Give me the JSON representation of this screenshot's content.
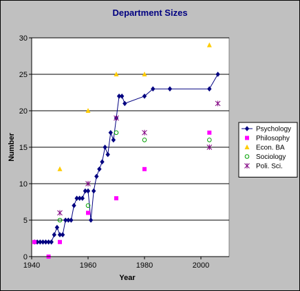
{
  "chart_data": {
    "type": "scatter",
    "title": "Department Sizes",
    "xlabel": "Year",
    "ylabel": "Number",
    "xlim": [
      1940,
      2010
    ],
    "ylim": [
      0,
      30
    ],
    "x_ticks": [
      1940,
      1960,
      1980,
      2000
    ],
    "y_ticks": [
      0,
      5,
      10,
      15,
      20,
      25,
      30
    ],
    "grid": "horizontal",
    "legend_position": "right",
    "series": [
      {
        "name": "Psychology",
        "style": "line-markers",
        "marker": "diamond",
        "color": "#000080",
        "points": [
          [
            1941,
            2
          ],
          [
            1942,
            2
          ],
          [
            1943,
            2
          ],
          [
            1944,
            2
          ],
          [
            1945,
            2
          ],
          [
            1946,
            2
          ],
          [
            1947,
            2
          ],
          [
            1948,
            3
          ],
          [
            1949,
            4
          ],
          [
            1950,
            3
          ],
          [
            1951,
            3
          ],
          [
            1952,
            5
          ],
          [
            1953,
            5
          ],
          [
            1954,
            5
          ],
          [
            1955,
            7
          ],
          [
            1956,
            8
          ],
          [
            1957,
            8
          ],
          [
            1958,
            8
          ],
          [
            1959,
            9
          ],
          [
            1960,
            9
          ],
          [
            1961,
            5
          ],
          [
            1962,
            9
          ],
          [
            1963,
            11
          ],
          [
            1964,
            12
          ],
          [
            1965,
            13
          ],
          [
            1966,
            15
          ],
          [
            1967,
            14
          ],
          [
            1968,
            17
          ],
          [
            1969,
            16
          ],
          [
            1970,
            19
          ],
          [
            1971,
            22
          ],
          [
            1972,
            22
          ],
          [
            1973,
            21
          ],
          [
            1980,
            22
          ],
          [
            1983,
            23
          ],
          [
            1989,
            23
          ],
          [
            2003,
            23
          ],
          [
            2006,
            25
          ]
        ]
      },
      {
        "name": "Philosophy",
        "style": "markers",
        "marker": "square",
        "color": "#ff00ff",
        "points": [
          [
            1941,
            2
          ],
          [
            1946,
            0
          ],
          [
            1950,
            2
          ],
          [
            1960,
            6
          ],
          [
            1970,
            8
          ],
          [
            1980,
            12
          ],
          [
            2003,
            17
          ]
        ]
      },
      {
        "name": "Econ. BA",
        "style": "markers",
        "marker": "triangle",
        "color": "#ffcc00",
        "points": [
          [
            1950,
            12
          ],
          [
            1960,
            20
          ],
          [
            1970,
            25
          ],
          [
            1980,
            25
          ],
          [
            2003,
            29
          ]
        ]
      },
      {
        "name": "Sociology",
        "style": "markers",
        "marker": "circle",
        "color": "#00a000",
        "points": [
          [
            1950,
            5
          ],
          [
            1960,
            7
          ],
          [
            1970,
            17
          ],
          [
            1980,
            16
          ],
          [
            2003,
            16
          ]
        ]
      },
      {
        "name": "Poli. Sci.",
        "style": "markers",
        "marker": "star",
        "color": "#800080",
        "points": [
          [
            1950,
            6
          ],
          [
            1960,
            10
          ],
          [
            1970,
            19
          ],
          [
            1980,
            17
          ],
          [
            2003,
            15
          ],
          [
            2006,
            21
          ]
        ]
      }
    ]
  }
}
